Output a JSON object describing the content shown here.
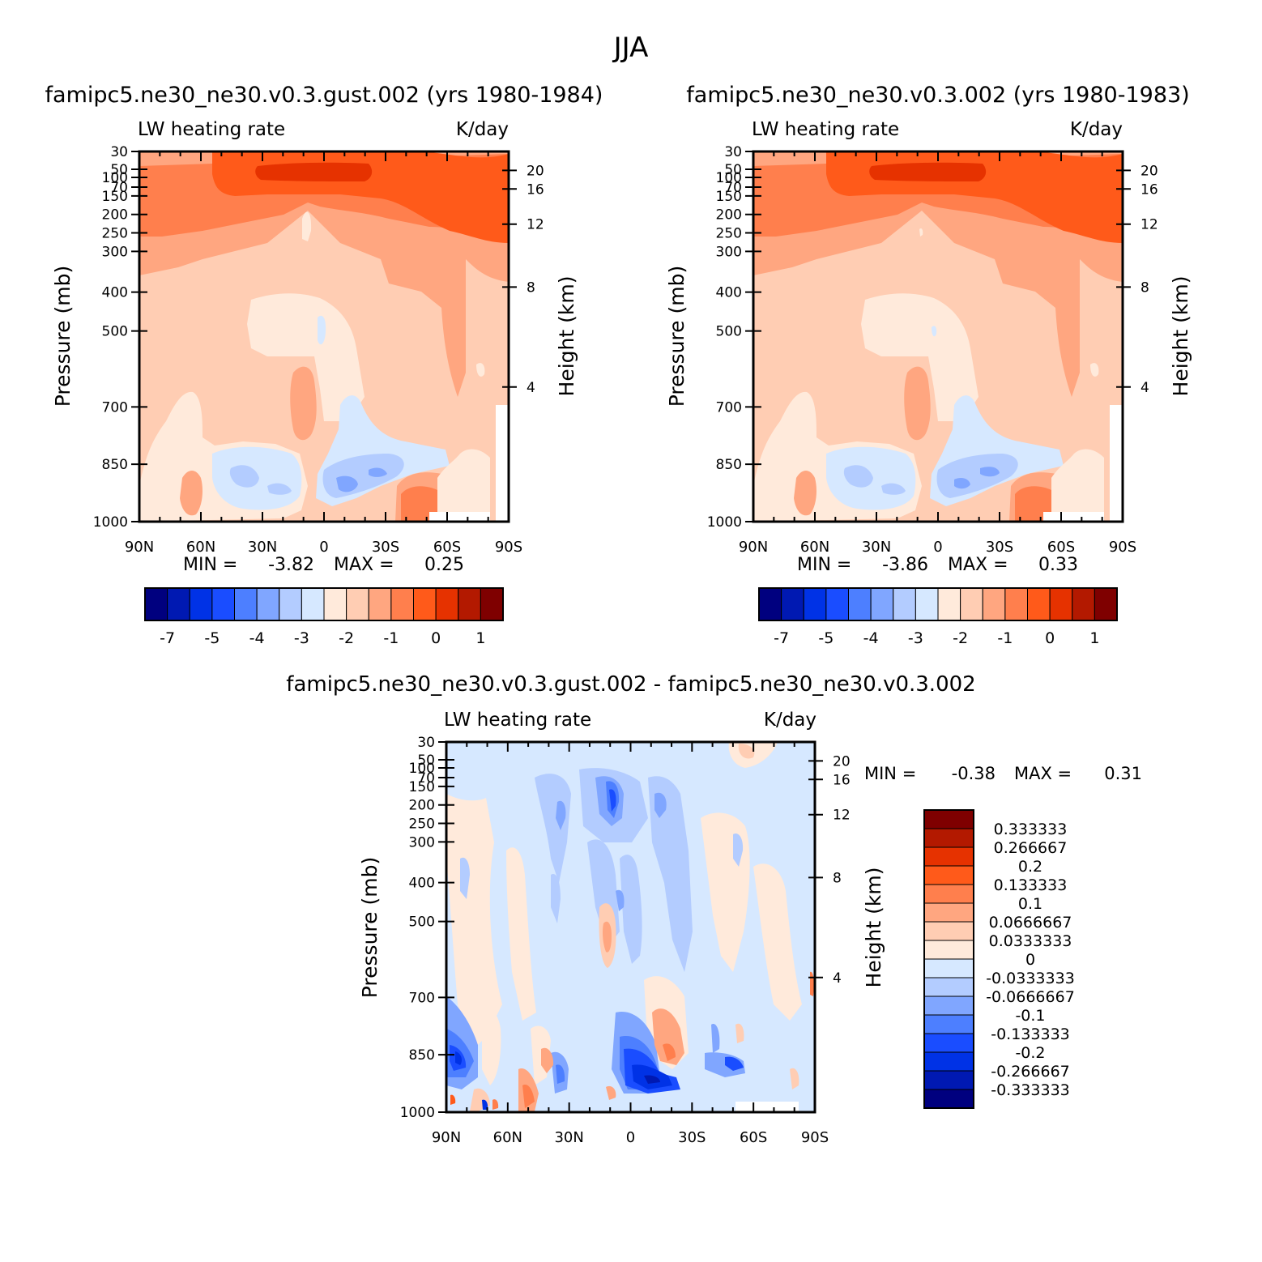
{
  "figure_title": "JJA",
  "palette": [
    "#00007f",
    "#0019b2",
    "#0032e6",
    "#1a4dff",
    "#4d7fff",
    "#80a6ff",
    "#b3ccff",
    "#d6e8ff",
    "#ffeadb",
    "#ffcdb3",
    "#ffa680",
    "#ff7f4d",
    "#ff5a1a",
    "#e63200",
    "#b31900",
    "#7f0000"
  ],
  "pressure_ticks": [
    "30",
    "50",
    "70",
    "100",
    "150",
    "200",
    "250",
    "300",
    "400",
    "500",
    "700",
    "850",
    "1000"
  ],
  "height_ticks": [
    "20",
    "16",
    "12",
    "8",
    "4"
  ],
  "lat_ticks": [
    "90N",
    "60N",
    "30N",
    "0",
    "30S",
    "60S",
    "90S"
  ],
  "left_label": "LW heating rate",
  "right_label": "K/day",
  "ylabel": "Pressure (mb)",
  "ylabel_right": "Height (km)",
  "min_label": "MIN =",
  "max_label": "MAX =",
  "chart_data": [
    {
      "type": "heatmap",
      "title": "famipc5.ne30_ne30.v0.3.gust.002 (yrs 1980-1984)",
      "variable": "LW heating rate",
      "units": "K/day",
      "min": "-3.82",
      "max": "0.25",
      "colorbar_labels": [
        "-7",
        "-5",
        "-4",
        "-3",
        "-2",
        "-1",
        "0",
        "1"
      ]
    },
    {
      "type": "heatmap",
      "title": "famipc5.ne30_ne30.v0.3.002 (yrs 1980-1983)",
      "variable": "LW heating rate",
      "units": "K/day",
      "min": "-3.86",
      "max": "0.33",
      "colorbar_labels": [
        "-7",
        "-5",
        "-4",
        "-3",
        "-2",
        "-1",
        "0",
        "1"
      ]
    },
    {
      "type": "heatmap",
      "title": "famipc5.ne30_ne30.v0.3.gust.002 - famipc5.ne30_ne30.v0.3.002",
      "variable": "LW heating rate",
      "units": "K/day",
      "min": "-0.38",
      "max": "0.31",
      "colorbar_labels": [
        "0.333333",
        "0.266667",
        "0.2",
        "0.133333",
        "0.1",
        "0.0666667",
        "0.0333333",
        "0",
        "-0.0333333",
        "-0.0666667",
        "-0.1",
        "-0.133333",
        "-0.2",
        "-0.266667",
        "-0.333333"
      ]
    }
  ]
}
